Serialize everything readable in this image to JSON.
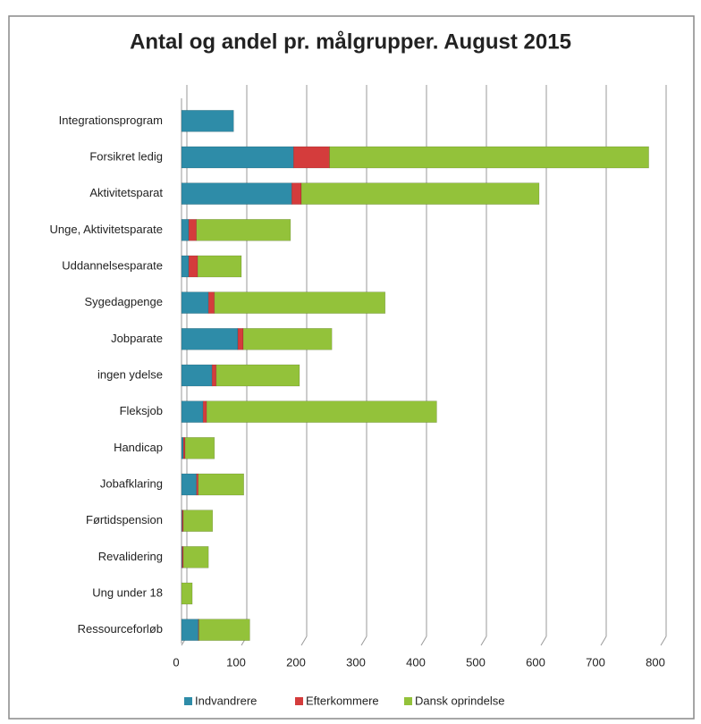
{
  "chart_data": {
    "type": "stacked-barh",
    "title": "Antal og andel pr. målgrupper. August 2015",
    "categories": [
      "Integrationsprogram",
      "Forsikret ledig",
      "Aktivitetsparat",
      "Unge, Aktivitetsparate",
      "Uddannelsesparate",
      "Sygedagpenge",
      "Jobparate",
      "ingen ydelse",
      "Fleksjob",
      "Handicap",
      "Jobafklaring",
      "Førtidspension",
      "Revalidering",
      "Ung under 18",
      "Ressourceforløb"
    ],
    "series": [
      {
        "name": "Indvandrere",
        "color": "#2e8ca8",
        "values": [
          87,
          187,
          184,
          12,
          12,
          45,
          94,
          51,
          36,
          3,
          25,
          1,
          1,
          0,
          28
        ]
      },
      {
        "name": "Efterkommere",
        "color": "#d43c3c",
        "values": [
          0,
          60,
          16,
          13,
          15,
          10,
          9,
          7,
          6,
          3,
          3,
          2,
          2,
          0,
          1
        ]
      },
      {
        "name": "Dansk oprindelse",
        "color": "#93c23a",
        "values": [
          0,
          533,
          397,
          157,
          73,
          285,
          148,
          139,
          384,
          49,
          76,
          49,
          42,
          18,
          85
        ]
      }
    ],
    "xlim": [
      0,
      800
    ],
    "xticks": [
      0,
      100,
      200,
      300,
      400,
      500,
      600,
      700,
      800
    ],
    "grid": true,
    "legend": "bottom"
  }
}
